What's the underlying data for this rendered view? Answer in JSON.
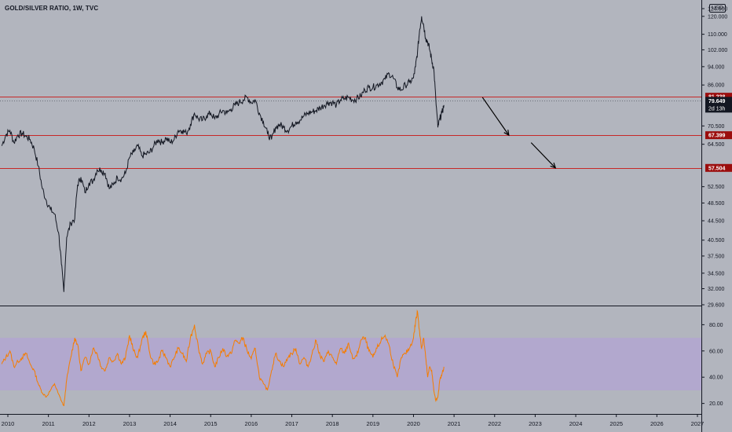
{
  "chart_title": "GOLD/SILVER RATIO, 1W, TVC",
  "currency_label": "USD",
  "colors": {
    "background": "#b2b5be",
    "price_line": "#131722",
    "rsi_line": "#f57c00",
    "rsi_band": "#b39ddb",
    "level_line": "#c62828",
    "level_label_bg": "#9b0d0d",
    "axis_text": "#131722"
  },
  "chart_data": [
    {
      "type": "line",
      "series": [
        {
          "x": [
            2009.85,
            2009.95,
            2010.05,
            2010.15,
            2010.25,
            2010.35,
            2010.45,
            2010.55,
            2010.65,
            2010.75,
            2010.85,
            2010.95,
            2011.05,
            2011.15,
            2011.25,
            2011.32,
            2011.38,
            2011.45,
            2011.55,
            2011.65,
            2011.72,
            2011.8,
            2011.9,
            2012.0,
            2012.1,
            2012.2,
            2012.3,
            2012.4,
            2012.5,
            2012.6,
            2012.7,
            2012.8,
            2012.9,
            2013.0,
            2013.1,
            2013.2,
            2013.3,
            2013.4,
            2013.5,
            2013.6,
            2013.7,
            2013.8,
            2013.9,
            2014.0,
            2014.1,
            2014.2,
            2014.3,
            2014.4,
            2014.5,
            2014.6,
            2014.7,
            2014.8,
            2014.9,
            2015.0,
            2015.1,
            2015.2,
            2015.3,
            2015.4,
            2015.5,
            2015.6,
            2015.7,
            2015.8,
            2015.9,
            2016.0,
            2016.1,
            2016.2,
            2016.3,
            2016.4,
            2016.5,
            2016.6,
            2016.7,
            2016.8,
            2016.9,
            2017.0,
            2017.1,
            2017.2,
            2017.3,
            2017.4,
            2017.5,
            2017.6,
            2017.7,
            2017.8,
            2017.9,
            2018.0,
            2018.1,
            2018.2,
            2018.3,
            2018.4,
            2018.5,
            2018.6,
            2018.7,
            2018.8,
            2018.9,
            2019.0,
            2019.1,
            2019.2,
            2019.3,
            2019.4,
            2019.5,
            2019.6,
            2019.7,
            2019.8,
            2019.9,
            2020.0,
            2020.05,
            2020.1,
            2020.15,
            2020.2,
            2020.25,
            2020.3,
            2020.35,
            2020.4,
            2020.45,
            2020.5,
            2020.55,
            2020.6,
            2020.65,
            2020.7,
            2020.75
          ],
          "y": [
            64.0,
            67.5,
            69.0,
            65.0,
            67.5,
            68.0,
            67.0,
            66.0,
            63.0,
            58.0,
            52.0,
            49.0,
            47.0,
            46.0,
            42.0,
            36.0,
            31.5,
            41.0,
            44.0,
            45.0,
            53.0,
            55.0,
            51.0,
            53.5,
            54.0,
            57.0,
            57.0,
            56.0,
            52.0,
            53.0,
            55.0,
            54.5,
            56.0,
            60.5,
            62.0,
            64.0,
            61.0,
            61.5,
            62.0,
            64.0,
            66.0,
            65.0,
            66.5,
            65.0,
            66.0,
            69.0,
            69.0,
            68.0,
            71.0,
            75.0,
            73.0,
            72.5,
            74.0,
            75.0,
            73.0,
            74.5,
            76.0,
            75.0,
            76.5,
            78.0,
            79.0,
            80.0,
            81.0,
            79.0,
            80.0,
            75.0,
            72.0,
            68.0,
            66.0,
            70.0,
            71.0,
            70.0,
            69.0,
            70.5,
            72.0,
            72.5,
            74.0,
            75.0,
            75.5,
            76.0,
            77.0,
            78.0,
            79.0,
            79.0,
            78.0,
            80.0,
            80.5,
            81.0,
            80.0,
            80.5,
            81.5,
            84.0,
            85.0,
            85.0,
            86.0,
            87.0,
            88.5,
            91.0,
            89.0,
            85.0,
            84.0,
            86.0,
            87.0,
            89.0,
            94.0,
            101.0,
            112.0,
            120.0,
            115.0,
            108.0,
            106.0,
            102.0,
            97.0,
            93.0,
            80.0,
            70.0,
            73.0,
            75.0,
            78.0
          ]
        }
      ],
      "y_ticks": [
        "124.000",
        "120.000",
        "110.000",
        "102.000",
        "94.000",
        "86.000",
        "81.238",
        "79.649",
        "70.500",
        "67.399",
        "64.500",
        "57.504",
        "52.500",
        "48.500",
        "44.500",
        "40.500",
        "37.500",
        "34.500",
        "32.000",
        "29.600"
      ],
      "x_ticks": [
        "2010",
        "2011",
        "2012",
        "2013",
        "2014",
        "2015",
        "2016",
        "2017",
        "2018",
        "2019",
        "2020",
        "2021",
        "2022",
        "2023",
        "2024",
        "2025",
        "2026",
        "2027"
      ],
      "ylim": [
        29.6,
        126
      ],
      "scale": "log",
      "levels": [
        {
          "value": 81.238,
          "label": "81.238"
        },
        {
          "value": 67.399,
          "label": "67.399"
        },
        {
          "value": 57.504,
          "label": "57.504"
        }
      ],
      "last_price": {
        "value": 79.649,
        "label": "79.649"
      },
      "countdown": "2d 13h",
      "arrows": [
        {
          "from": [
            2021.7,
            81.0
          ],
          "to": [
            2022.35,
            67.4
          ]
        },
        {
          "from": [
            2022.9,
            65.0
          ],
          "to": [
            2023.5,
            57.5
          ]
        }
      ]
    },
    {
      "type": "line",
      "series": [
        {
          "x": [
            2009.85,
            2009.95,
            2010.05,
            2010.15,
            2010.25,
            2010.35,
            2010.45,
            2010.55,
            2010.65,
            2010.75,
            2010.85,
            2010.95,
            2011.05,
            2011.15,
            2011.25,
            2011.32,
            2011.38,
            2011.45,
            2011.55,
            2011.65,
            2011.72,
            2011.8,
            2011.9,
            2012.0,
            2012.1,
            2012.2,
            2012.3,
            2012.4,
            2012.5,
            2012.6,
            2012.7,
            2012.8,
            2012.9,
            2013.0,
            2013.1,
            2013.2,
            2013.3,
            2013.4,
            2013.5,
            2013.6,
            2013.7,
            2013.8,
            2013.9,
            2014.0,
            2014.1,
            2014.2,
            2014.3,
            2014.4,
            2014.5,
            2014.6,
            2014.7,
            2014.8,
            2014.9,
            2015.0,
            2015.1,
            2015.2,
            2015.3,
            2015.4,
            2015.5,
            2015.6,
            2015.7,
            2015.8,
            2015.9,
            2016.0,
            2016.1,
            2016.2,
            2016.3,
            2016.4,
            2016.5,
            2016.6,
            2016.7,
            2016.8,
            2016.9,
            2017.0,
            2017.1,
            2017.2,
            2017.3,
            2017.4,
            2017.5,
            2017.6,
            2017.7,
            2017.8,
            2017.9,
            2018.0,
            2018.1,
            2018.2,
            2018.3,
            2018.4,
            2018.5,
            2018.6,
            2018.7,
            2018.8,
            2018.9,
            2019.0,
            2019.1,
            2019.2,
            2019.3,
            2019.4,
            2019.5,
            2019.6,
            2019.7,
            2019.8,
            2019.9,
            2020.0,
            2020.05,
            2020.1,
            2020.15,
            2020.2,
            2020.25,
            2020.3,
            2020.35,
            2020.4,
            2020.45,
            2020.5,
            2020.55,
            2020.6,
            2020.65,
            2020.7,
            2020.75
          ],
          "y": [
            50,
            55,
            60,
            48,
            52,
            55,
            58,
            50,
            45,
            35,
            28,
            25,
            30,
            35,
            27,
            22,
            18,
            38,
            55,
            70,
            65,
            45,
            55,
            50,
            62,
            58,
            48,
            45,
            55,
            52,
            58,
            50,
            55,
            72,
            60,
            55,
            68,
            75,
            58,
            50,
            52,
            60,
            55,
            48,
            55,
            62,
            58,
            52,
            70,
            80,
            62,
            50,
            58,
            60,
            48,
            55,
            62,
            56,
            58,
            68,
            66,
            70,
            60,
            54,
            62,
            40,
            35,
            30,
            45,
            58,
            52,
            48,
            55,
            58,
            62,
            50,
            55,
            48,
            58,
            68,
            56,
            52,
            60,
            55,
            50,
            62,
            58,
            66,
            54,
            56,
            68,
            70,
            60,
            55,
            62,
            68,
            72,
            64,
            50,
            40,
            55,
            58,
            62,
            70,
            82,
            90,
            75,
            62,
            70,
            55,
            40,
            48,
            45,
            30,
            22,
            25,
            38,
            42,
            48
          ],
          "color": "#f57c00"
        }
      ],
      "y_ticks": [
        "80.00",
        "60.00",
        "40.00",
        "20.00"
      ],
      "ylim": [
        12,
        94
      ],
      "band": [
        30,
        70
      ]
    }
  ]
}
